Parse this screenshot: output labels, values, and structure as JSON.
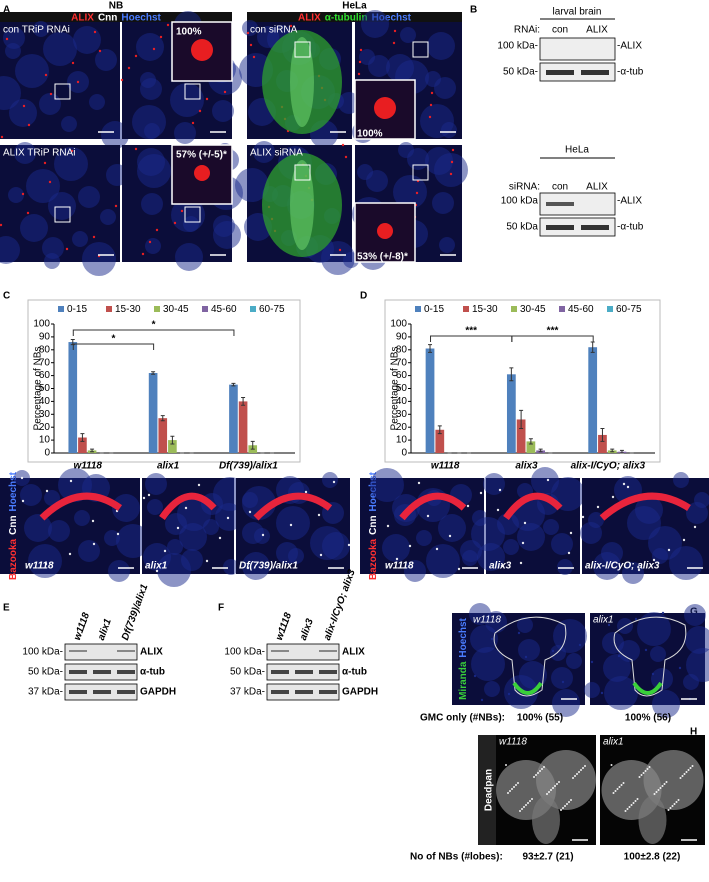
{
  "panel_labels": [
    "A",
    "B",
    "C",
    "D",
    "E",
    "F",
    "G",
    "H"
  ],
  "panel_a": {
    "nb": {
      "title": "NB",
      "stain": [
        "ALIX",
        "Cnn",
        "Hoechst"
      ],
      "rows": [
        {
          "label": "con TRiP RNAi",
          "pct": "100%"
        },
        {
          "label": "ALIX TRiP RNAi",
          "pct": "57% (+/-5)*"
        }
      ]
    },
    "hela": {
      "title": "HeLa",
      "stain": [
        "ALIX",
        "α-tubulin",
        "Hoechst"
      ],
      "rows": [
        {
          "label": "con siRNA",
          "pct": "100%"
        },
        {
          "label": "ALIX siRNA",
          "pct": "53% (+/-8)*"
        }
      ]
    }
  },
  "panel_b": {
    "blots": [
      {
        "title": "larval brain",
        "treatment": "RNAi:",
        "lanes": [
          "con",
          "ALIX"
        ],
        "markers": [
          "100 kDa-",
          "50 kDa-"
        ],
        "proteins": [
          "-ALIX",
          "-α-tub"
        ]
      },
      {
        "title": "HeLa",
        "treatment": "siRNA:",
        "lanes": [
          "con",
          "ALIX"
        ],
        "markers": [
          "100 kDa",
          "50 kDa"
        ],
        "proteins": [
          "-ALIX",
          "-α-tub"
        ]
      }
    ]
  },
  "chart_data": [
    {
      "type": "bar",
      "ylabel": "Percentage of NBs",
      "categories": [
        "w1118",
        "alix1",
        "Df(739)/alix1"
      ],
      "ylim": [
        0,
        100
      ],
      "yticks": [
        0,
        10,
        20,
        30,
        40,
        50,
        60,
        70,
        80,
        90,
        100
      ],
      "series": [
        {
          "name": "0-15",
          "color": "#4f81bd",
          "values": [
            86,
            62,
            53
          ],
          "errors": [
            2,
            1,
            1
          ]
        },
        {
          "name": "15-30",
          "color": "#c0504d",
          "values": [
            12,
            27,
            40
          ],
          "errors": [
            3,
            2,
            3
          ]
        },
        {
          "name": "30-45",
          "color": "#9bbb59",
          "values": [
            2,
            10,
            6
          ],
          "errors": [
            1,
            3,
            3
          ]
        },
        {
          "name": "45-60",
          "color": "#8064a2",
          "values": [
            0,
            0,
            0
          ],
          "errors": [
            0,
            0,
            0
          ]
        },
        {
          "name": "60-75",
          "color": "#4bacc6",
          "values": [
            0,
            0,
            0
          ],
          "errors": [
            0,
            0,
            0
          ]
        }
      ],
      "annotations": [
        "*",
        "*"
      ]
    },
    {
      "type": "bar",
      "ylabel": "Percentage of NBs",
      "categories": [
        "w1118",
        "alix3",
        "alix-I/CyO; alix3"
      ],
      "ylim": [
        0,
        100
      ],
      "yticks": [
        0,
        10,
        20,
        30,
        40,
        50,
        60,
        70,
        80,
        90,
        100
      ],
      "series": [
        {
          "name": "0-15",
          "color": "#4f81bd",
          "values": [
            81,
            61,
            82
          ],
          "errors": [
            3,
            5,
            4
          ]
        },
        {
          "name": "15-30",
          "color": "#c0504d",
          "values": [
            18,
            26,
            14
          ],
          "errors": [
            3,
            7,
            5
          ]
        },
        {
          "name": "30-45",
          "color": "#9bbb59",
          "values": [
            0,
            9,
            2
          ],
          "errors": [
            0,
            2,
            1
          ]
        },
        {
          "name": "45-60",
          "color": "#8064a2",
          "values": [
            0,
            2,
            1
          ],
          "errors": [
            0,
            1,
            1
          ]
        },
        {
          "name": "60-75",
          "color": "#4bacc6",
          "values": [
            0,
            0,
            0
          ],
          "errors": [
            0,
            0,
            0
          ]
        }
      ],
      "annotations": [
        "***",
        "***"
      ]
    }
  ],
  "strips": [
    {
      "stain": [
        "Bazooka",
        "Cnn",
        "Hoechst"
      ],
      "genotypes": [
        "w1118",
        "alix1",
        "Df(739)/alix1"
      ]
    },
    {
      "stain": [
        "Bazooka",
        "Cnn",
        "Hoechst"
      ],
      "genotypes": [
        "w1118",
        "alix3",
        "alix-I/CyO; alix3"
      ]
    }
  ],
  "panel_e": {
    "lanes": [
      "w1118",
      "alix1",
      "Df(739)/alix1"
    ],
    "markers": [
      "100 kDa-",
      "50 kDa-",
      "37 kDa-"
    ],
    "proteins": [
      "ALIX",
      "α-tub",
      "GAPDH"
    ]
  },
  "panel_f": {
    "lanes": [
      "w1118",
      "alix3",
      "alix-I/CyO; alix3"
    ],
    "markers": [
      "100 kDa-",
      "50 kDa-",
      "37 kDa-"
    ],
    "proteins": [
      "ALIX",
      "α-tub",
      "GAPDH"
    ]
  },
  "panel_g": {
    "stain": [
      "Miranda",
      "Hoechst"
    ],
    "genotypes": [
      "w1118",
      "alix1"
    ],
    "measure": "GMC only (#NBs):",
    "results": [
      "100% (55)",
      "100% (56)"
    ]
  },
  "panel_h": {
    "stain": "Deadpan",
    "genotypes": [
      "w1118",
      "alix1"
    ],
    "measure": "No of NBs (#lobes):",
    "results": [
      "93±2.7 (21)",
      "100±2.8 (22)"
    ]
  }
}
